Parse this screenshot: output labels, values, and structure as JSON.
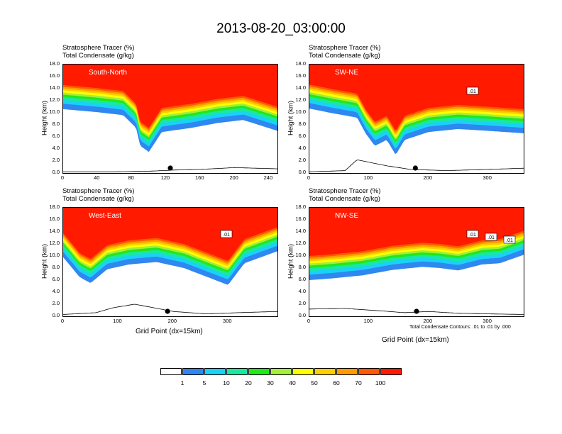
{
  "title": "2013-08-20_03:00:00",
  "panel_header": {
    "line1": "Stratosphere Tracer   (%)",
    "line2": "Total Condensate   (g/kg)"
  },
  "ylabel": "Height (km)",
  "xlabel": "Grid Point (dx=15km)",
  "contour_note": "Total Condensate Contours: .01 to .01 by .000",
  "y_ticks": [
    "18.0",
    "16.0",
    "14.0",
    "12.0",
    "10.0",
    "8.0",
    "6.0",
    "4.0",
    "2.0",
    "0.0"
  ],
  "colorbar": {
    "colors": [
      "#ffffff",
      "#2f87f0",
      "#19d2f5",
      "#1ae8a0",
      "#22e81a",
      "#a5ee3c",
      "#ffff00",
      "#fdd000",
      "#ff9d00",
      "#ff5a00",
      "#ff1a00"
    ],
    "labels": [
      "1",
      "5",
      "10",
      "20",
      "30",
      "40",
      "50",
      "60",
      "70",
      "100"
    ]
  },
  "chart_data": [
    {
      "type": "contour",
      "label": "South-North",
      "xlim": [
        0,
        250
      ],
      "x_ticks": [
        "0",
        "40",
        "80",
        "120",
        "160",
        "200",
        "240"
      ],
      "ylim": [
        0,
        18
      ],
      "tracer_base_km": [
        [
          0,
          14.6
        ],
        [
          40,
          14.1
        ],
        [
          70,
          13.6
        ],
        [
          85,
          11.5
        ],
        [
          90,
          8.5
        ],
        [
          100,
          7.5
        ],
        [
          115,
          10.8
        ],
        [
          150,
          11.5
        ],
        [
          180,
          12.3
        ],
        [
          210,
          12.8
        ],
        [
          250,
          11.0
        ]
      ],
      "terrain_km": [
        [
          0,
          0.2
        ],
        [
          60,
          0.2
        ],
        [
          100,
          0.3
        ],
        [
          130,
          0.5
        ],
        [
          160,
          0.6
        ],
        [
          200,
          0.9
        ],
        [
          250,
          0.7
        ]
      ],
      "marker_x": 125,
      "contour_labels": []
    },
    {
      "type": "contour",
      "label": "SW-NE",
      "xlim": [
        0,
        360
      ],
      "x_ticks": [
        "0",
        "100",
        "200",
        "300"
      ],
      "ylim": [
        0,
        18
      ],
      "tracer_base_km": [
        [
          0,
          14.7
        ],
        [
          40,
          13.9
        ],
        [
          80,
          13.2
        ],
        [
          95,
          10.5
        ],
        [
          110,
          8.5
        ],
        [
          130,
          9.5
        ],
        [
          145,
          7.0
        ],
        [
          160,
          9.5
        ],
        [
          200,
          10.8
        ],
        [
          250,
          11.3
        ],
        [
          300,
          11.0
        ],
        [
          360,
          10.6
        ]
      ],
      "terrain_km": [
        [
          0,
          0.2
        ],
        [
          60,
          0.4
        ],
        [
          80,
          2.2
        ],
        [
          100,
          1.8
        ],
        [
          130,
          1.2
        ],
        [
          170,
          0.6
        ],
        [
          230,
          0.4
        ],
        [
          300,
          0.6
        ],
        [
          360,
          0.8
        ]
      ],
      "marker_x": 178,
      "contour_labels": [
        ".01"
      ]
    },
    {
      "type": "contour",
      "label": "West-East",
      "xlim": [
        0,
        390
      ],
      "x_ticks": [
        "0",
        "100",
        "200",
        "300"
      ],
      "ylim": [
        0,
        18
      ],
      "tracer_base_km": [
        [
          0,
          13.8
        ],
        [
          30,
          10.5
        ],
        [
          50,
          9.5
        ],
        [
          80,
          11.8
        ],
        [
          120,
          12.6
        ],
        [
          170,
          13.0
        ],
        [
          220,
          12.0
        ],
        [
          260,
          10.6
        ],
        [
          300,
          9.2
        ],
        [
          330,
          12.8
        ],
        [
          360,
          13.8
        ],
        [
          390,
          14.8
        ]
      ],
      "terrain_km": [
        [
          0,
          0.3
        ],
        [
          60,
          0.6
        ],
        [
          90,
          1.4
        ],
        [
          130,
          2.0
        ],
        [
          160,
          1.5
        ],
        [
          200,
          0.8
        ],
        [
          260,
          0.4
        ],
        [
          320,
          0.6
        ],
        [
          390,
          0.8
        ]
      ],
      "marker_x": 190,
      "contour_labels": [
        ".01"
      ]
    },
    {
      "type": "contour",
      "label": "NW-SE",
      "xlim": [
        0,
        360
      ],
      "x_ticks": [
        "0",
        "100",
        "200",
        "300"
      ],
      "ylim": [
        0,
        18
      ],
      "tracer_base_km": [
        [
          0,
          10.0
        ],
        [
          40,
          10.3
        ],
        [
          90,
          10.8
        ],
        [
          140,
          11.7
        ],
        [
          190,
          12.2
        ],
        [
          220,
          12.0
        ],
        [
          250,
          11.6
        ],
        [
          290,
          12.6
        ],
        [
          320,
          12.8
        ],
        [
          360,
          14.2
        ]
      ],
      "terrain_km": [
        [
          0,
          1.2
        ],
        [
          60,
          1.3
        ],
        [
          120,
          0.9
        ],
        [
          160,
          0.6
        ],
        [
          200,
          0.8
        ],
        [
          250,
          0.5
        ],
        [
          300,
          0.4
        ],
        [
          360,
          0.3
        ]
      ],
      "marker_x": 180,
      "contour_labels": [
        ".01",
        ".01",
        ".01"
      ]
    }
  ]
}
